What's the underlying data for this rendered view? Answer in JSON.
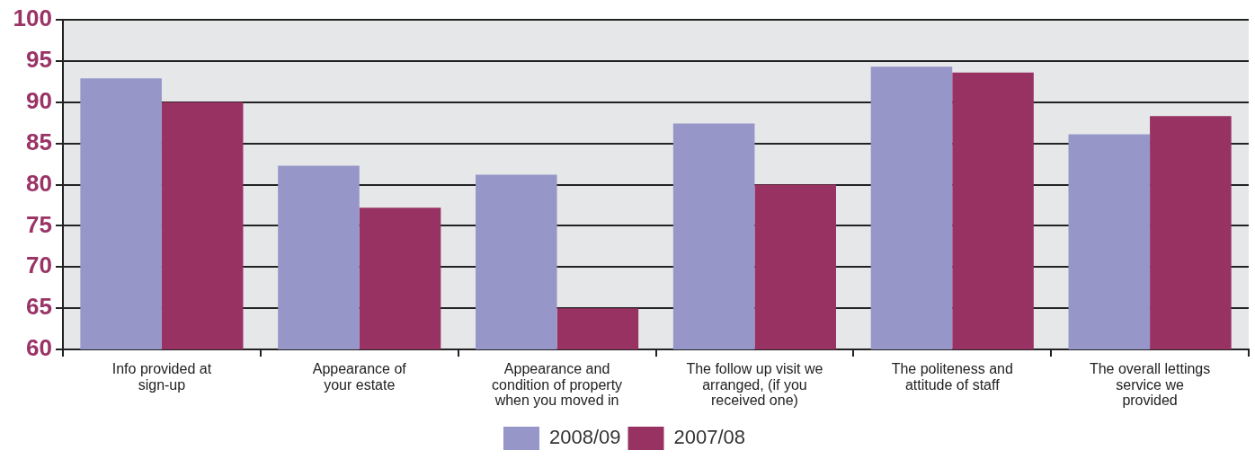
{
  "chart_data": {
    "type": "bar",
    "categories": [
      "Info provided at\nsign-up",
      "Appearance of\nyour estate",
      "Appearance and\ncondition of property\nwhen you moved in",
      "The follow up visit we\narranged, (if you\nreceived one)",
      "The politeness and\nattitude of staff",
      "The overall lettings\nservice we\nprovided"
    ],
    "series": [
      {
        "name": "2008/09",
        "color": "#9696c9",
        "values": [
          92.9,
          82.3,
          81.2,
          87.4,
          94.3,
          86.1
        ]
      },
      {
        "name": "2007/08",
        "color": "#983262",
        "values": [
          90,
          77.2,
          65,
          80,
          93.6,
          88.3
        ]
      }
    ],
    "ylim": [
      60,
      100
    ],
    "yticks": [
      60,
      65,
      70,
      75,
      80,
      85,
      90,
      95,
      100
    ],
    "grid": "y",
    "legend": "bottom"
  }
}
